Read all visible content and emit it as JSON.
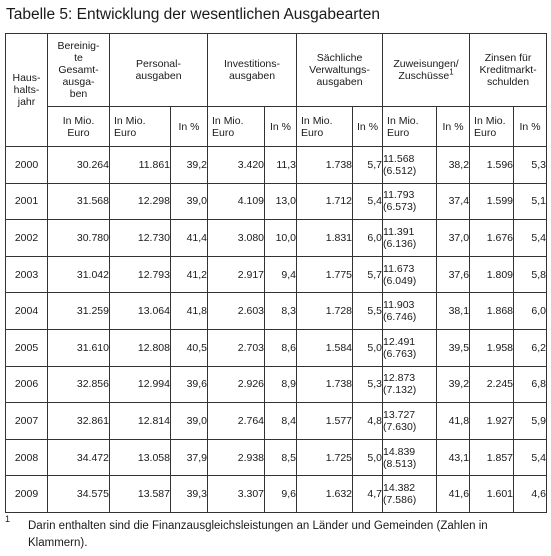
{
  "title": "Tabelle 5: Entwicklung der wesentlichen Ausgabearten",
  "headers": {
    "year": [
      "Haus-",
      "halts-",
      "jahr"
    ],
    "total": [
      "Bereinig-",
      "te",
      "Gesamt-",
      "ausga-",
      "ben"
    ],
    "personal": [
      "Personal-",
      "ausgaben"
    ],
    "invest": [
      "Investitions-",
      "ausgaben"
    ],
    "verwaltung": [
      "Sächliche",
      "Verwaltungs-",
      "ausgaben"
    ],
    "zuweisungen": [
      "Zuweisungen/",
      "Zuschüsse"
    ],
    "zuweisungen_sup": "1",
    "zinsen": [
      "Zinsen für",
      "Kreditmarkt-",
      "schulden"
    ],
    "mio_line1": "In Mio.",
    "mio_line2": "Euro",
    "pct": "In %"
  },
  "rows": [
    {
      "year": "2000",
      "total": "30.264",
      "pers": "11.861",
      "pers_pct": "39,2",
      "inv": "3.420",
      "inv_pct": "11,3",
      "verw": "1.738",
      "verw_pct": "5,7",
      "zuw": "11.568",
      "zuw_sub": "(6.512)",
      "zuw_pct": "38,2",
      "zins": "1.596",
      "zins_pct": "5,3"
    },
    {
      "year": "2001",
      "total": "31.568",
      "pers": "12.298",
      "pers_pct": "39,0",
      "inv": "4.109",
      "inv_pct": "13,0",
      "verw": "1.712",
      "verw_pct": "5,4",
      "zuw": "11.793",
      "zuw_sub": "(6.573)",
      "zuw_pct": "37,4",
      "zins": "1.599",
      "zins_pct": "5,1"
    },
    {
      "year": "2002",
      "total": "30.780",
      "pers": "12.730",
      "pers_pct": "41,4",
      "inv": "3.080",
      "inv_pct": "10,0",
      "verw": "1.831",
      "verw_pct": "6,0",
      "zuw": "11.391",
      "zuw_sub": "(6.136)",
      "zuw_pct": "37,0",
      "zins": "1.676",
      "zins_pct": "5,4"
    },
    {
      "year": "2003",
      "total": "31.042",
      "pers": "12.793",
      "pers_pct": "41,2",
      "inv": "2.917",
      "inv_pct": "9,4",
      "verw": "1.775",
      "verw_pct": "5,7",
      "zuw": "11.673",
      "zuw_sub": "(6.049)",
      "zuw_pct": "37,6",
      "zins": "1.809",
      "zins_pct": "5,8"
    },
    {
      "year": "2004",
      "total": "31.259",
      "pers": "13.064",
      "pers_pct": "41,8",
      "inv": "2.603",
      "inv_pct": "8,3",
      "verw": "1.728",
      "verw_pct": "5,5",
      "zuw": "11.903",
      "zuw_sub": "(6.746)",
      "zuw_pct": "38,1",
      "zins": "1.868",
      "zins_pct": "6,0"
    },
    {
      "year": "2005",
      "total": "31.610",
      "pers": "12.808",
      "pers_pct": "40,5",
      "inv": "2.703",
      "inv_pct": "8,6",
      "verw": "1.584",
      "verw_pct": "5,0",
      "zuw": "12.491",
      "zuw_sub": "(6.763)",
      "zuw_pct": "39,5",
      "zins": "1.958",
      "zins_pct": "6,2"
    },
    {
      "year": "2006",
      "total": "32.856",
      "pers": "12.994",
      "pers_pct": "39,6",
      "inv": "2.926",
      "inv_pct": "8,9",
      "verw": "1.738",
      "verw_pct": "5,3",
      "zuw": "12.873",
      "zuw_sub": "(7.132)",
      "zuw_pct": "39,2",
      "zins": "2.245",
      "zins_pct": "6,8"
    },
    {
      "year": "2007",
      "total": "32.861",
      "pers": "12.814",
      "pers_pct": "39,0",
      "inv": "2.764",
      "inv_pct": "8,4",
      "verw": "1.577",
      "verw_pct": "4,8",
      "zuw": "13.727",
      "zuw_sub": "(7.630)",
      "zuw_pct": "41,8",
      "zins": "1.927",
      "zins_pct": "5,9"
    },
    {
      "year": "2008",
      "total": "34.472",
      "pers": "13.058",
      "pers_pct": "37,9",
      "inv": "2.938",
      "inv_pct": "8,5",
      "verw": "1.725",
      "verw_pct": "5,0",
      "zuw": "14.839",
      "zuw_sub": "(8.513)",
      "zuw_pct": "43,1",
      "zins": "1.857",
      "zins_pct": "5,4"
    },
    {
      "year": "2009",
      "total": "34.575",
      "pers": "13.587",
      "pers_pct": "39,3",
      "inv": "3.307",
      "inv_pct": "9,6",
      "verw": "1.632",
      "verw_pct": "4,7",
      "zuw": "14.382",
      "zuw_sub": "(7.586)",
      "zuw_pct": "41,6",
      "zins": "1.601",
      "zins_pct": "4,6"
    }
  ],
  "footnote": {
    "number": "1",
    "text": "Darin enthalten sind die Finanzausgleichsleistungen an Länder und Gemeinden (Zahlen in Klammern)."
  }
}
